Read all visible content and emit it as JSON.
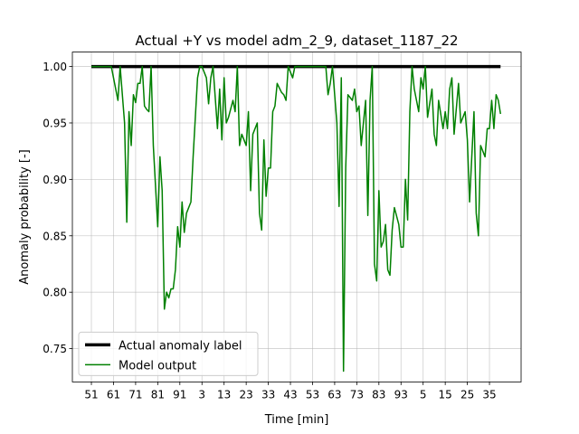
{
  "chart_data": {
    "type": "line",
    "title": "Actual +Y vs model adm_2_9, dataset_1187_22",
    "xlabel": "Time [min]",
    "ylabel": "Anomaly probability [-]",
    "series": [
      {
        "name": "Actual anomaly label",
        "color": "#000000",
        "linewidth": 3.5,
        "x": [
          0,
          185
        ],
        "values": [
          1.0,
          1.0
        ]
      },
      {
        "name": "Model output",
        "color": "#008000",
        "linewidth": 1.5,
        "x": [
          0,
          9,
          10,
          12,
          13,
          15,
          16,
          17,
          18,
          19,
          20,
          21,
          22,
          23,
          24,
          25,
          26,
          27,
          28,
          30,
          31,
          32,
          33,
          34,
          35,
          36,
          37,
          38,
          39,
          40,
          41,
          42,
          43,
          45,
          46,
          48,
          49,
          50,
          52,
          53,
          54,
          55,
          57,
          58,
          59,
          60,
          61,
          62,
          64,
          65,
          66,
          67,
          68,
          70,
          71,
          72,
          73,
          75,
          76,
          77,
          78,
          79,
          80,
          81,
          82,
          83,
          84,
          86,
          87,
          88,
          89,
          91,
          92,
          106,
          107,
          108,
          109,
          111,
          112,
          113,
          114,
          115,
          116,
          118,
          119,
          120,
          121,
          122,
          124,
          125,
          126,
          127,
          128,
          129,
          130,
          131,
          132,
          133,
          134,
          135,
          136,
          137,
          139,
          140,
          141,
          142,
          143,
          144,
          145,
          146,
          148,
          149,
          150,
          151,
          152,
          154,
          155,
          156,
          157,
          159,
          160,
          161,
          162,
          163,
          164,
          166,
          167,
          168,
          169,
          170,
          171,
          173,
          174,
          175,
          176,
          178,
          179,
          180,
          181,
          182,
          183,
          184,
          185
        ],
        "values": [
          1.0,
          1.0,
          0.99,
          0.97,
          1.0,
          0.95,
          0.862,
          0.96,
          0.93,
          0.975,
          0.968,
          0.985,
          0.985,
          1.0,
          0.965,
          0.962,
          0.96,
          1.0,
          0.93,
          0.858,
          0.92,
          0.89,
          0.785,
          0.8,
          0.795,
          0.803,
          0.803,
          0.82,
          0.858,
          0.84,
          0.88,
          0.853,
          0.87,
          0.88,
          0.92,
          0.99,
          1.0,
          1.0,
          0.99,
          0.967,
          0.99,
          1.0,
          0.945,
          0.98,
          0.935,
          0.99,
          0.95,
          0.955,
          0.97,
          0.96,
          1.0,
          0.93,
          0.94,
          0.93,
          0.96,
          0.89,
          0.94,
          0.95,
          0.87,
          0.855,
          0.935,
          0.885,
          0.91,
          0.91,
          0.96,
          0.965,
          0.985,
          0.977,
          0.975,
          0.97,
          1.0,
          0.99,
          1.0,
          1.0,
          0.975,
          0.985,
          1.0,
          0.95,
          0.876,
          0.99,
          0.73,
          0.91,
          0.975,
          0.97,
          0.98,
          0.96,
          0.965,
          0.93,
          0.97,
          0.868,
          0.97,
          1.0,
          0.825,
          0.81,
          0.89,
          0.84,
          0.845,
          0.86,
          0.82,
          0.815,
          0.855,
          0.875,
          0.86,
          0.84,
          0.84,
          0.9,
          0.864,
          0.96,
          1.0,
          0.98,
          0.96,
          0.99,
          0.98,
          1.0,
          0.955,
          0.98,
          0.94,
          0.93,
          0.97,
          0.945,
          0.96,
          0.945,
          0.98,
          0.99,
          0.94,
          0.985,
          0.95,
          0.955,
          0.96,
          0.935,
          0.88,
          0.96,
          0.87,
          0.85,
          0.93,
          0.92,
          0.945,
          0.945,
          0.97,
          0.945,
          0.975,
          0.97,
          0.958
        ]
      }
    ],
    "xlim": [
      -8.6,
      194.3
    ],
    "xticks": [
      {
        "value": 0,
        "label": "51"
      },
      {
        "value": 10,
        "label": "61"
      },
      {
        "value": 20,
        "label": "71"
      },
      {
        "value": 30,
        "label": "81"
      },
      {
        "value": 40,
        "label": "91"
      },
      {
        "value": 50,
        "label": "3"
      },
      {
        "value": 60,
        "label": "13"
      },
      {
        "value": 70,
        "label": "23"
      },
      {
        "value": 80,
        "label": "33"
      },
      {
        "value": 90,
        "label": "43"
      },
      {
        "value": 100,
        "label": "53"
      },
      {
        "value": 110,
        "label": "63"
      },
      {
        "value": 120,
        "label": "73"
      },
      {
        "value": 130,
        "label": "83"
      },
      {
        "value": 140,
        "label": "93"
      },
      {
        "value": 150,
        "label": "5"
      },
      {
        "value": 160,
        "label": "15"
      },
      {
        "value": 170,
        "label": "25"
      },
      {
        "value": 180,
        "label": "35"
      }
    ],
    "ylim": [
      0.7205,
      1.0128
    ],
    "yticks": [
      0.75,
      {
        "value": 0.8,
        "label": "0.80"
      },
      0.85,
      {
        "value": 0.9,
        "label": "0.90"
      },
      0.95,
      {
        "value": 1.0,
        "label": "1.00"
      }
    ],
    "grid": true,
    "legend": "lower left"
  }
}
